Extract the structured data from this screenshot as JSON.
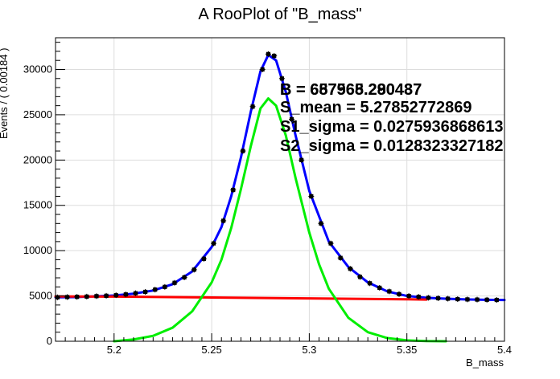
{
  "chart_data": {
    "type": "line",
    "title": "A RooPlot of \"B_mass\"",
    "xlabel": "B_mass",
    "ylabel": "Events / ( 0.00184 )",
    "xlim": [
      5.17,
      5.4
    ],
    "ylim": [
      0,
      33500
    ],
    "xticks": [
      5.2,
      5.25,
      5.3,
      5.35,
      5.4
    ],
    "xtick_labels": [
      "5.2",
      "5.25",
      "5.3",
      "5.35",
      "5.4"
    ],
    "yticks": [
      0,
      5000,
      10000,
      15000,
      20000,
      25000,
      30000
    ],
    "ytick_labels": [
      "0",
      "5000",
      "10000",
      "15000",
      "20000",
      "25000",
      "30000"
    ],
    "grid": true,
    "series": [
      {
        "name": "",
        "kind": "points",
        "color": "#000000",
        "points": [
          [
            5.171,
            4850
          ],
          [
            5.176,
            4880
          ],
          [
            5.181,
            4900
          ],
          [
            5.186,
            4930
          ],
          [
            5.191,
            4980
          ],
          [
            5.196,
            5020
          ],
          [
            5.201,
            5080
          ],
          [
            5.206,
            5170
          ],
          [
            5.211,
            5300
          ],
          [
            5.216,
            5450
          ],
          [
            5.221,
            5700
          ],
          [
            5.226,
            6000
          ],
          [
            5.231,
            6450
          ],
          [
            5.236,
            7050
          ],
          [
            5.241,
            7900
          ],
          [
            5.246,
            9100
          ],
          [
            5.251,
            10800
          ],
          [
            5.256,
            13300
          ],
          [
            5.261,
            16700
          ],
          [
            5.266,
            21000
          ],
          [
            5.271,
            25900
          ],
          [
            5.276,
            30000
          ],
          [
            5.279,
            31700
          ],
          [
            5.282,
            31500
          ],
          [
            5.286,
            29000
          ],
          [
            5.291,
            24500
          ],
          [
            5.296,
            20000
          ],
          [
            5.301,
            16000
          ],
          [
            5.306,
            13000
          ],
          [
            5.311,
            10800
          ],
          [
            5.316,
            9200
          ],
          [
            5.321,
            8000
          ],
          [
            5.326,
            7100
          ],
          [
            5.331,
            6400
          ],
          [
            5.336,
            5900
          ],
          [
            5.341,
            5500
          ],
          [
            5.346,
            5200
          ],
          [
            5.351,
            5000
          ],
          [
            5.356,
            4900
          ],
          [
            5.361,
            4800
          ],
          [
            5.366,
            4750
          ],
          [
            5.371,
            4700
          ],
          [
            5.376,
            4650
          ],
          [
            5.381,
            4620
          ],
          [
            5.386,
            4600
          ],
          [
            5.391,
            4580
          ],
          [
            5.396,
            4560
          ]
        ]
      },
      {
        "name": "",
        "kind": "line",
        "color": "#0000ff",
        "points": [
          [
            5.17,
            4850
          ],
          [
            5.18,
            4880
          ],
          [
            5.19,
            4950
          ],
          [
            5.2,
            5050
          ],
          [
            5.21,
            5250
          ],
          [
            5.22,
            5600
          ],
          [
            5.23,
            6300
          ],
          [
            5.24,
            7700
          ],
          [
            5.25,
            10400
          ],
          [
            5.255,
            12600
          ],
          [
            5.26,
            16000
          ],
          [
            5.265,
            20300
          ],
          [
            5.27,
            25300
          ],
          [
            5.275,
            29800
          ],
          [
            5.279,
            31600
          ],
          [
            5.283,
            31000
          ],
          [
            5.288,
            27500
          ],
          [
            5.293,
            22700
          ],
          [
            5.3,
            16600
          ],
          [
            5.31,
            11000
          ],
          [
            5.32,
            8200
          ],
          [
            5.33,
            6500
          ],
          [
            5.34,
            5500
          ],
          [
            5.35,
            5000
          ],
          [
            5.36,
            4800
          ],
          [
            5.37,
            4700
          ],
          [
            5.38,
            4620
          ],
          [
            5.39,
            4580
          ],
          [
            5.4,
            4550
          ]
        ]
      },
      {
        "name": "",
        "kind": "line",
        "color": "#ff0000",
        "points": [
          [
            5.17,
            4950
          ],
          [
            5.2,
            4930
          ],
          [
            5.25,
            4830
          ],
          [
            5.3,
            4730
          ],
          [
            5.35,
            4630
          ],
          [
            5.36,
            4600
          ]
        ]
      },
      {
        "name": "",
        "kind": "line",
        "color": "#00ee00",
        "points": [
          [
            5.2,
            0
          ],
          [
            5.21,
            200
          ],
          [
            5.22,
            600
          ],
          [
            5.23,
            1500
          ],
          [
            5.24,
            3300
          ],
          [
            5.25,
            6500
          ],
          [
            5.255,
            9000
          ],
          [
            5.26,
            12500
          ],
          [
            5.265,
            16800
          ],
          [
            5.27,
            21500
          ],
          [
            5.275,
            25700
          ],
          [
            5.279,
            26800
          ],
          [
            5.283,
            26000
          ],
          [
            5.288,
            22700
          ],
          [
            5.293,
            18000
          ],
          [
            5.3,
            12000
          ],
          [
            5.305,
            8500
          ],
          [
            5.31,
            5800
          ],
          [
            5.32,
            2600
          ],
          [
            5.33,
            1000
          ],
          [
            5.34,
            350
          ],
          [
            5.35,
            100
          ],
          [
            5.36,
            20
          ],
          [
            5.37,
            0
          ]
        ]
      }
    ],
    "annotations": [
      "B = 687965.290437",
      "B = 657568.280487",
      "S_mean = 5.27852772869",
      "S1_sigma = 0.0275936868613",
      "S2_sigma = 0.0128323327182"
    ]
  }
}
